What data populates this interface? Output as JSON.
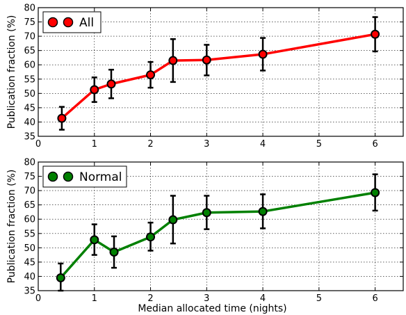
{
  "chart_data": [
    {
      "type": "line",
      "xlabel": "",
      "ylabel": "Publication fraction (%)",
      "xlim": [
        0,
        6.5
      ],
      "ylim": [
        35,
        80
      ],
      "x_ticks": [
        "0",
        "1",
        "2",
        "3",
        "4",
        "5",
        "6"
      ],
      "y_ticks": [
        "35",
        "40",
        "45",
        "50",
        "55",
        "60",
        "65",
        "70",
        "75",
        "80"
      ],
      "grid": true,
      "legend_position": "top-left",
      "series": [
        {
          "name": "All",
          "color": "#ff0000",
          "marker_color": "#ff0000",
          "x": [
            0.42,
            1.0,
            1.3,
            2.0,
            2.4,
            3.0,
            4.0,
            6.0
          ],
          "y": [
            41.3,
            51.3,
            53.3,
            56.5,
            61.5,
            61.7,
            63.7,
            70.7
          ],
          "y_low": [
            37.3,
            47.0,
            48.3,
            52.0,
            54.0,
            56.3,
            58.0,
            64.7
          ],
          "y_high": [
            45.3,
            55.6,
            58.3,
            61.0,
            69.0,
            67.0,
            69.4,
            76.7
          ]
        }
      ]
    },
    {
      "type": "line",
      "xlabel": "Median allocated time (nights)",
      "ylabel": "Publication fraction (%)",
      "xlim": [
        0,
        6.5
      ],
      "ylim": [
        35,
        80
      ],
      "x_ticks": [
        "0",
        "1",
        "2",
        "3",
        "4",
        "5",
        "6"
      ],
      "y_ticks": [
        "35",
        "40",
        "45",
        "50",
        "55",
        "60",
        "65",
        "70",
        "75",
        "80"
      ],
      "grid": true,
      "legend_position": "top-left",
      "series": [
        {
          "name": "Normal",
          "color": "#008000",
          "marker_color": "#008000",
          "x": [
            0.4,
            1.0,
            1.35,
            2.0,
            2.4,
            3.0,
            4.0,
            6.0
          ],
          "y": [
            39.5,
            52.8,
            48.5,
            53.8,
            59.8,
            62.3,
            62.7,
            69.3
          ],
          "y_low": [
            35.0,
            47.5,
            43.0,
            49.0,
            51.5,
            56.5,
            56.8,
            63.0
          ],
          "y_high": [
            44.5,
            58.2,
            54.0,
            58.8,
            68.2,
            68.2,
            68.7,
            75.7
          ]
        }
      ]
    }
  ]
}
